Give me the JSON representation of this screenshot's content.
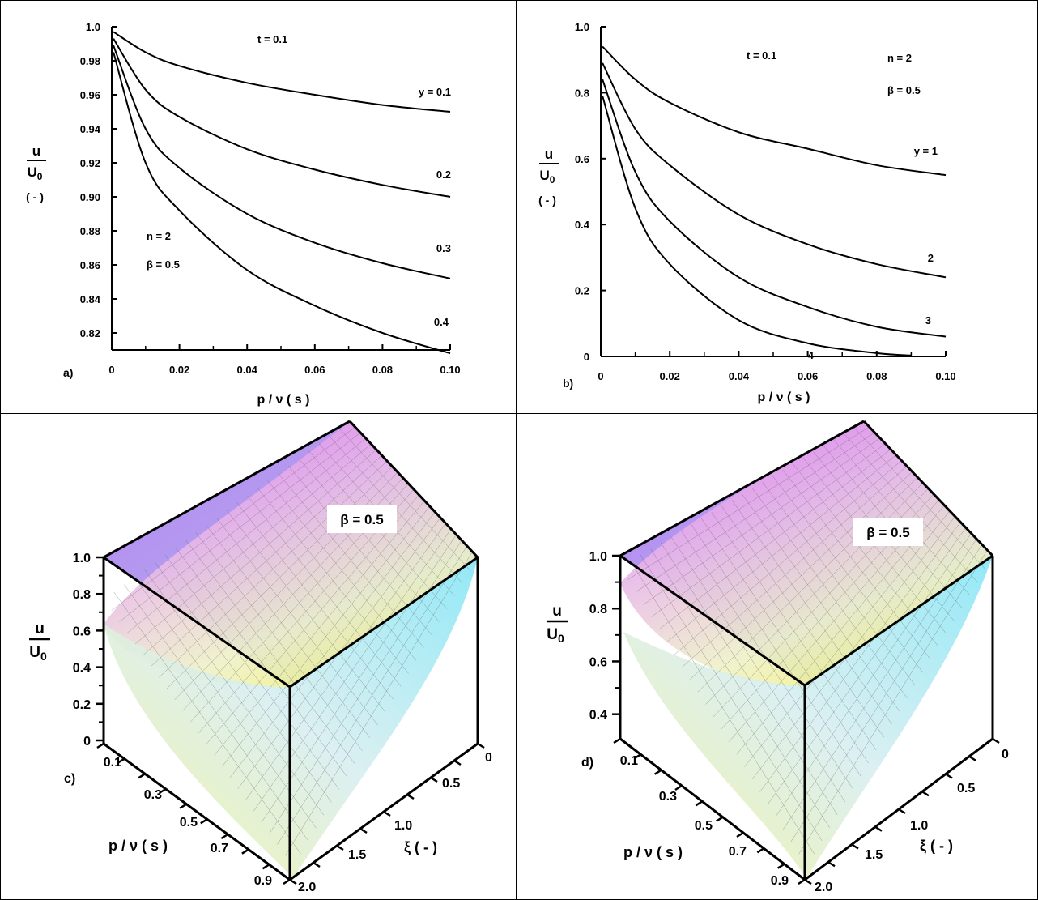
{
  "chart_data": [
    {
      "panel": "a)",
      "type": "line",
      "xlabel": "p / ν  ( s )",
      "ylabel_num": "u",
      "ylabel_den": "U",
      "ylabel_den_sub": "0",
      "ylabel_unit": "( - )",
      "xlim": [
        0,
        0.1
      ],
      "ylim": [
        0.81,
        1.0
      ],
      "xticks": [
        0,
        0.02,
        0.04,
        0.06,
        0.08,
        0.1
      ],
      "xtick_labels": [
        "0",
        "0.02",
        "0.04",
        "0.06",
        "0.08",
        "0.10"
      ],
      "yticks": [
        0.82,
        0.84,
        0.86,
        0.88,
        0.9,
        0.92,
        0.94,
        0.96,
        0.98,
        1.0
      ],
      "ytick_labels": [
        "0.82",
        "0.84",
        "0.86",
        "0.88",
        "0.90",
        "0.92",
        "0.94",
        "0.96",
        "0.98",
        "1.0"
      ],
      "annotations": [
        "t = 0.1",
        "n = 2",
        "β = 0.5"
      ],
      "series": [
        {
          "label": "y = 0.1",
          "x": [
            0.0005,
            0.01,
            0.02,
            0.04,
            0.06,
            0.08,
            0.1
          ],
          "y": [
            0.997,
            0.985,
            0.977,
            0.967,
            0.96,
            0.954,
            0.95
          ]
        },
        {
          "label": "0.2",
          "x": [
            0.0005,
            0.01,
            0.02,
            0.04,
            0.06,
            0.08,
            0.1
          ],
          "y": [
            0.993,
            0.963,
            0.947,
            0.928,
            0.916,
            0.907,
            0.9
          ]
        },
        {
          "label": "0.3",
          "x": [
            0.0005,
            0.01,
            0.02,
            0.04,
            0.06,
            0.08,
            0.1
          ],
          "y": [
            0.989,
            0.94,
            0.917,
            0.89,
            0.873,
            0.861,
            0.852
          ]
        },
        {
          "label": "0.4",
          "x": [
            0.0005,
            0.01,
            0.02,
            0.04,
            0.06,
            0.08,
            0.1
          ],
          "y": [
            0.985,
            0.92,
            0.892,
            0.857,
            0.836,
            0.82,
            0.808
          ]
        }
      ]
    },
    {
      "panel": "b)",
      "type": "line",
      "xlabel": "p / ν  ( s )",
      "ylabel_num": "u",
      "ylabel_den": "U",
      "ylabel_den_sub": "0",
      "ylabel_unit": "( - )",
      "xlim": [
        0,
        0.1
      ],
      "ylim": [
        0,
        1.0
      ],
      "xticks": [
        0,
        0.02,
        0.04,
        0.06,
        0.08,
        0.1
      ],
      "xtick_labels": [
        "0",
        "0.02",
        "0.04",
        "0.06",
        "0.08",
        "0.10"
      ],
      "yticks": [
        0,
        0.2,
        0.4,
        0.6,
        0.8,
        1.0
      ],
      "ytick_labels": [
        "0",
        "0.2",
        "0.4",
        "0.6",
        "0.8",
        "1.0"
      ],
      "annotations": [
        "t = 0.1",
        "n = 2",
        "β = 0.5"
      ],
      "series": [
        {
          "label": "y = 1",
          "x": [
            0.0005,
            0.01,
            0.02,
            0.04,
            0.06,
            0.08,
            0.1
          ],
          "y": [
            0.94,
            0.84,
            0.77,
            0.68,
            0.63,
            0.58,
            0.55
          ]
        },
        {
          "label": "2",
          "x": [
            0.0005,
            0.01,
            0.02,
            0.04,
            0.06,
            0.08,
            0.1
          ],
          "y": [
            0.89,
            0.69,
            0.58,
            0.43,
            0.34,
            0.28,
            0.24
          ]
        },
        {
          "label": "3",
          "x": [
            0.0005,
            0.01,
            0.02,
            0.04,
            0.06,
            0.08,
            0.1
          ],
          "y": [
            0.84,
            0.56,
            0.41,
            0.24,
            0.15,
            0.09,
            0.06
          ]
        },
        {
          "label": "4",
          "x": [
            0.0005,
            0.01,
            0.02,
            0.04,
            0.06,
            0.08,
            0.09
          ],
          "y": [
            0.79,
            0.45,
            0.28,
            0.11,
            0.04,
            0.01,
            0.003
          ]
        }
      ]
    },
    {
      "panel": "c)",
      "type": "surface",
      "zlabel_num": "u",
      "zlabel_den": "U",
      "zlabel_den_sub": "0",
      "xlabel": "p / ν  ( s )",
      "ylabel": "ξ  ( - )",
      "annotation": "β = 0.5",
      "zlim": [
        0,
        1.0
      ],
      "zticks": [
        0,
        0.2,
        0.4,
        0.6,
        0.8,
        1.0
      ],
      "ztick_labels": [
        "0",
        "0.2",
        "0.4",
        "0.6",
        "0.8",
        "1.0"
      ],
      "xtick_labels": [
        "0.1",
        "0.3",
        "0.5",
        "0.7",
        "0.9"
      ],
      "ytick_labels": [
        "0",
        "0.5",
        "1.0",
        "1.5",
        "2.0"
      ]
    },
    {
      "panel": "d)",
      "type": "surface",
      "zlabel_num": "u",
      "zlabel_den": "U",
      "zlabel_den_sub": "0",
      "xlabel": "p / ν  ( s )",
      "ylabel": "ξ  ( - )",
      "annotation": "β = 0.5",
      "zlim": [
        0.35,
        1.0
      ],
      "zticks": [
        0.4,
        0.6,
        0.8,
        1.0
      ],
      "ztick_labels": [
        "0.4",
        "0.6",
        "0.8",
        "1.0"
      ],
      "xtick_labels": [
        "0.1",
        "0.3",
        "0.5",
        "0.7",
        "0.9"
      ],
      "ytick_labels": [
        "0",
        "0.5",
        "1.0",
        "1.5",
        "2.0"
      ]
    }
  ]
}
